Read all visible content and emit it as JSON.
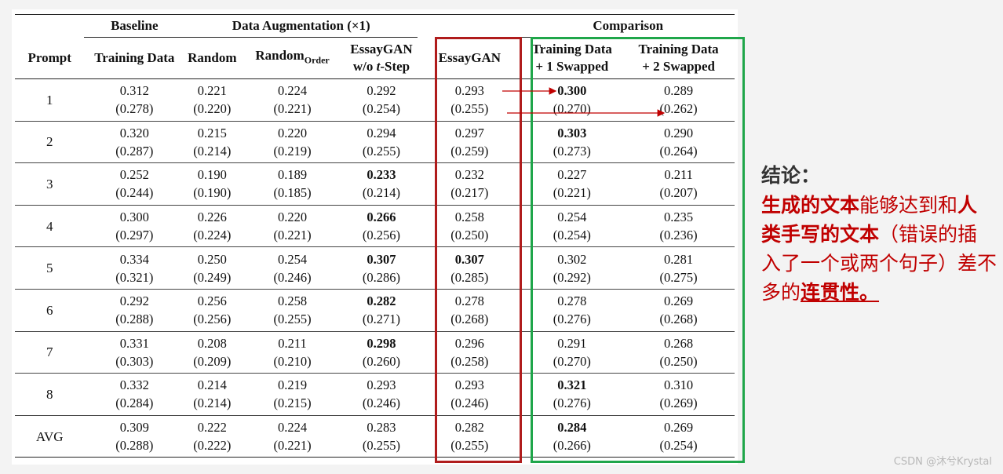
{
  "chart_data": {
    "type": "table",
    "group_headers": {
      "baseline": "Baseline",
      "augmentation": "Data Augmentation (×1)",
      "comparison": "Comparison"
    },
    "columns": {
      "prompt": "Prompt",
      "training_data": "Training Data",
      "random": "Random",
      "random_order_main": "Random",
      "random_order_sub": "Order",
      "essaygan_wo_1": "EssayGAN",
      "essaygan_wo_2a": "w/o ",
      "essaygan_wo_2b": "t",
      "essaygan_wo_2c": "-Step",
      "essaygan": "EssayGAN",
      "swap1_line1": "Training Data",
      "swap1_line2": "+ 1 Swapped",
      "swap2_line1": "Training Data",
      "swap2_line2": "+ 2 Swapped"
    },
    "rows": [
      {
        "prompt": "1",
        "cells": [
          {
            "v": "0.312",
            "sd": "(0.278)",
            "bold": false
          },
          {
            "v": "0.221",
            "sd": "(0.220)",
            "bold": false
          },
          {
            "v": "0.224",
            "sd": "(0.221)",
            "bold": false
          },
          {
            "v": "0.292",
            "sd": "(0.254)",
            "bold": false
          },
          {
            "v": "0.293",
            "sd": "(0.255)",
            "bold": false
          },
          {
            "v": "0.300",
            "sd": "(0.270)",
            "bold": true
          },
          {
            "v": "0.289",
            "sd": "(0.262)",
            "bold": false
          }
        ]
      },
      {
        "prompt": "2",
        "cells": [
          {
            "v": "0.320",
            "sd": "(0.287)",
            "bold": false
          },
          {
            "v": "0.215",
            "sd": "(0.214)",
            "bold": false
          },
          {
            "v": "0.220",
            "sd": "(0.219)",
            "bold": false
          },
          {
            "v": "0.294",
            "sd": "(0.255)",
            "bold": false
          },
          {
            "v": "0.297",
            "sd": "(0.259)",
            "bold": false
          },
          {
            "v": "0.303",
            "sd": "(0.273)",
            "bold": true
          },
          {
            "v": "0.290",
            "sd": "(0.264)",
            "bold": false
          }
        ]
      },
      {
        "prompt": "3",
        "cells": [
          {
            "v": "0.252",
            "sd": "(0.244)",
            "bold": false
          },
          {
            "v": "0.190",
            "sd": "(0.190)",
            "bold": false
          },
          {
            "v": "0.189",
            "sd": "(0.185)",
            "bold": false
          },
          {
            "v": "0.233",
            "sd": "(0.214)",
            "bold": true
          },
          {
            "v": "0.232",
            "sd": "(0.217)",
            "bold": false
          },
          {
            "v": "0.227",
            "sd": "(0.221)",
            "bold": false
          },
          {
            "v": "0.211",
            "sd": "(0.207)",
            "bold": false
          }
        ]
      },
      {
        "prompt": "4",
        "cells": [
          {
            "v": "0.300",
            "sd": "(0.297)",
            "bold": false
          },
          {
            "v": "0.226",
            "sd": "(0.224)",
            "bold": false
          },
          {
            "v": "0.220",
            "sd": "(0.221)",
            "bold": false
          },
          {
            "v": "0.266",
            "sd": "(0.256)",
            "bold": true
          },
          {
            "v": "0.258",
            "sd": "(0.250)",
            "bold": false
          },
          {
            "v": "0.254",
            "sd": "(0.254)",
            "bold": false
          },
          {
            "v": "0.235",
            "sd": "(0.236)",
            "bold": false
          }
        ]
      },
      {
        "prompt": "5",
        "cells": [
          {
            "v": "0.334",
            "sd": "(0.321)",
            "bold": false
          },
          {
            "v": "0.250",
            "sd": "(0.249)",
            "bold": false
          },
          {
            "v": "0.254",
            "sd": "(0.246)",
            "bold": false
          },
          {
            "v": "0.307",
            "sd": "(0.286)",
            "bold": true
          },
          {
            "v": "0.307",
            "sd": "(0.285)",
            "bold": true
          },
          {
            "v": "0.302",
            "sd": "(0.292)",
            "bold": false
          },
          {
            "v": "0.281",
            "sd": "(0.275)",
            "bold": false
          }
        ]
      },
      {
        "prompt": "6",
        "cells": [
          {
            "v": "0.292",
            "sd": "(0.288)",
            "bold": false
          },
          {
            "v": "0.256",
            "sd": "(0.256)",
            "bold": false
          },
          {
            "v": "0.258",
            "sd": "(0.255)",
            "bold": false
          },
          {
            "v": "0.282",
            "sd": "(0.271)",
            "bold": true
          },
          {
            "v": "0.278",
            "sd": "(0.268)",
            "bold": false
          },
          {
            "v": "0.278",
            "sd": "(0.276)",
            "bold": false
          },
          {
            "v": "0.269",
            "sd": "(0.268)",
            "bold": false
          }
        ]
      },
      {
        "prompt": "7",
        "cells": [
          {
            "v": "0.331",
            "sd": "(0.303)",
            "bold": false
          },
          {
            "v": "0.208",
            "sd": "(0.209)",
            "bold": false
          },
          {
            "v": "0.211",
            "sd": "(0.210)",
            "bold": false
          },
          {
            "v": "0.298",
            "sd": "(0.260)",
            "bold": true
          },
          {
            "v": "0.296",
            "sd": "(0.258)",
            "bold": false
          },
          {
            "v": "0.291",
            "sd": "(0.270)",
            "bold": false
          },
          {
            "v": "0.268",
            "sd": "(0.250)",
            "bold": false
          }
        ]
      },
      {
        "prompt": "8",
        "cells": [
          {
            "v": "0.332",
            "sd": "(0.284)",
            "bold": false
          },
          {
            "v": "0.214",
            "sd": "(0.214)",
            "bold": false
          },
          {
            "v": "0.219",
            "sd": "(0.215)",
            "bold": false
          },
          {
            "v": "0.293",
            "sd": "(0.246)",
            "bold": false
          },
          {
            "v": "0.293",
            "sd": "(0.246)",
            "bold": false
          },
          {
            "v": "0.321",
            "sd": "(0.276)",
            "bold": true
          },
          {
            "v": "0.310",
            "sd": "(0.269)",
            "bold": false
          }
        ]
      },
      {
        "prompt": "AVG",
        "cells": [
          {
            "v": "0.309",
            "sd": "(0.288)",
            "bold": false
          },
          {
            "v": "0.222",
            "sd": "(0.222)",
            "bold": false
          },
          {
            "v": "0.224",
            "sd": "(0.221)",
            "bold": false
          },
          {
            "v": "0.283",
            "sd": "(0.255)",
            "bold": false
          },
          {
            "v": "0.282",
            "sd": "(0.255)",
            "bold": false
          },
          {
            "v": "0.284",
            "sd": "(0.266)",
            "bold": true
          },
          {
            "v": "0.269",
            "sd": "(0.254)",
            "bold": false
          }
        ]
      }
    ]
  },
  "note": {
    "title": "结论：",
    "p1": "生成的文本",
    "p2": "能够达到和",
    "p3": "人类手写的文本",
    "p4": "（错误的插入了一个或两个句子）差不多的",
    "p5": "连贯性。"
  },
  "watermark": "CSDN @沐兮Krystal",
  "colors": {
    "red_box": "#b01c1c",
    "green_box": "#1fa64a",
    "note_text": "#c00000",
    "arrow": "#c00000"
  }
}
